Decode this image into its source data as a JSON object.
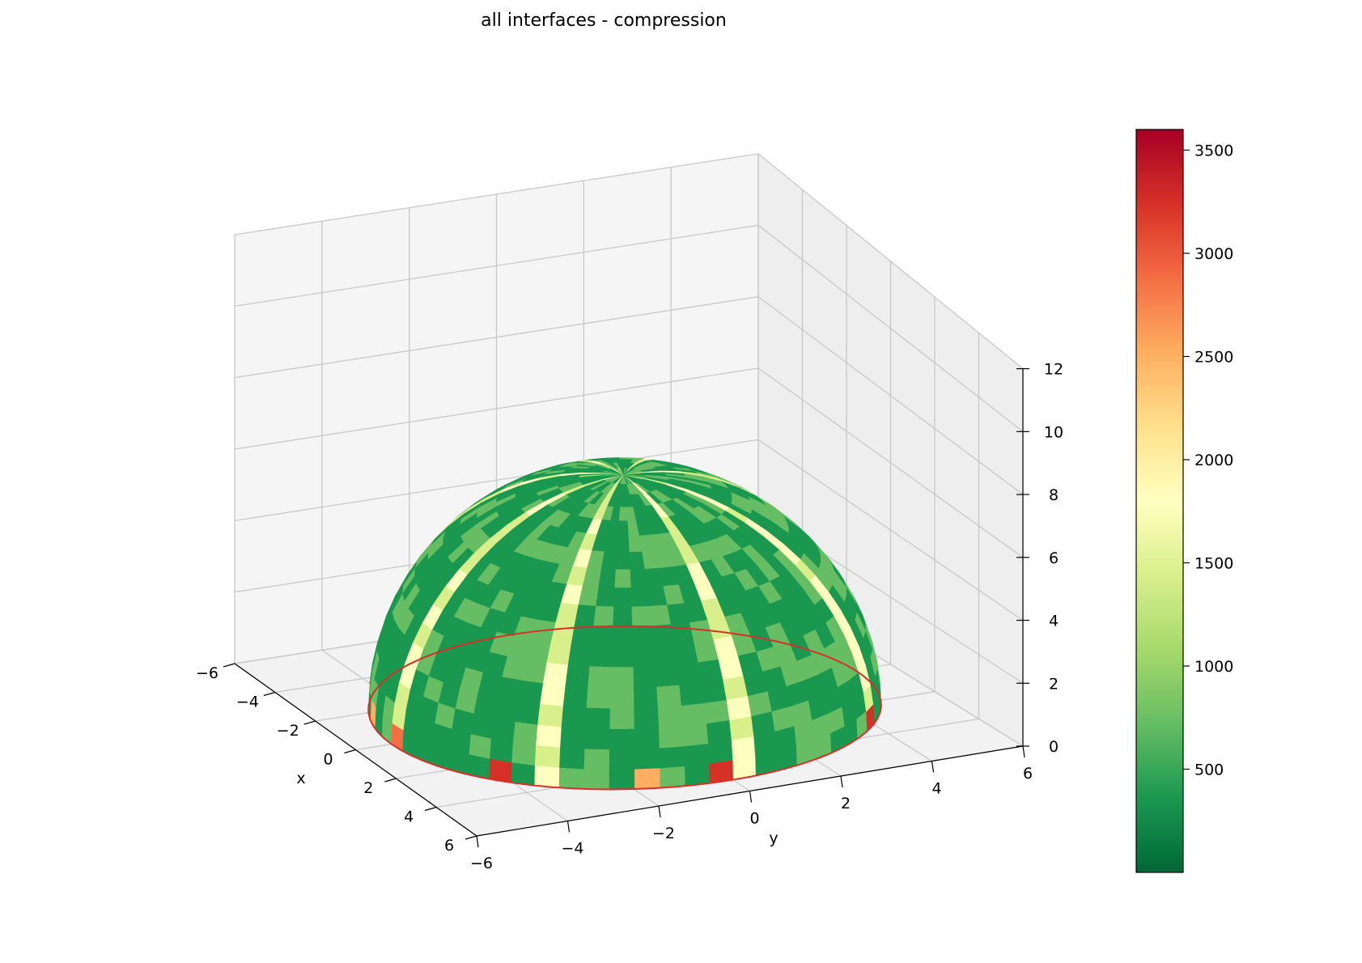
{
  "chart_data": {
    "type": "3d-surface",
    "title": "all interfaces - compression",
    "xlabel": "x",
    "ylabel": "y",
    "zlabel": "",
    "xlim": [
      -6,
      6
    ],
    "ylim": [
      -6,
      6
    ],
    "zlim": [
      0,
      12
    ],
    "x_ticks": [
      "−6",
      "−4",
      "−2",
      "0",
      "2",
      "4",
      "6"
    ],
    "y_ticks": [
      "−6",
      "−4",
      "−2",
      "0",
      "2",
      "4",
      "6"
    ],
    "z_ticks": [
      "0",
      "2",
      "4",
      "6",
      "8",
      "10",
      "12"
    ],
    "grid": true,
    "surface": {
      "shape": "dome",
      "base_radius": 5.2,
      "apex_height": 6.9,
      "dominant_value_range": [
        200,
        1000
      ],
      "rib_value_range": [
        1300,
        2000
      ],
      "base_edge_value_range": [
        2500,
        3600
      ]
    },
    "colorbar": {
      "colormap": "RdYlGn_r",
      "min": 0,
      "max": 3600,
      "ticks": [
        "500",
        "1000",
        "1500",
        "2000",
        "2500",
        "3000",
        "3500"
      ],
      "tick_values": [
        500,
        1000,
        1500,
        2000,
        2500,
        3000,
        3500
      ],
      "colors": [
        "#006837",
        "#1a9850",
        "#66bd63",
        "#a6d96a",
        "#d9ef8b",
        "#ffffbf",
        "#fee08b",
        "#fdae61",
        "#f46d43",
        "#d73027",
        "#a50026"
      ]
    }
  }
}
